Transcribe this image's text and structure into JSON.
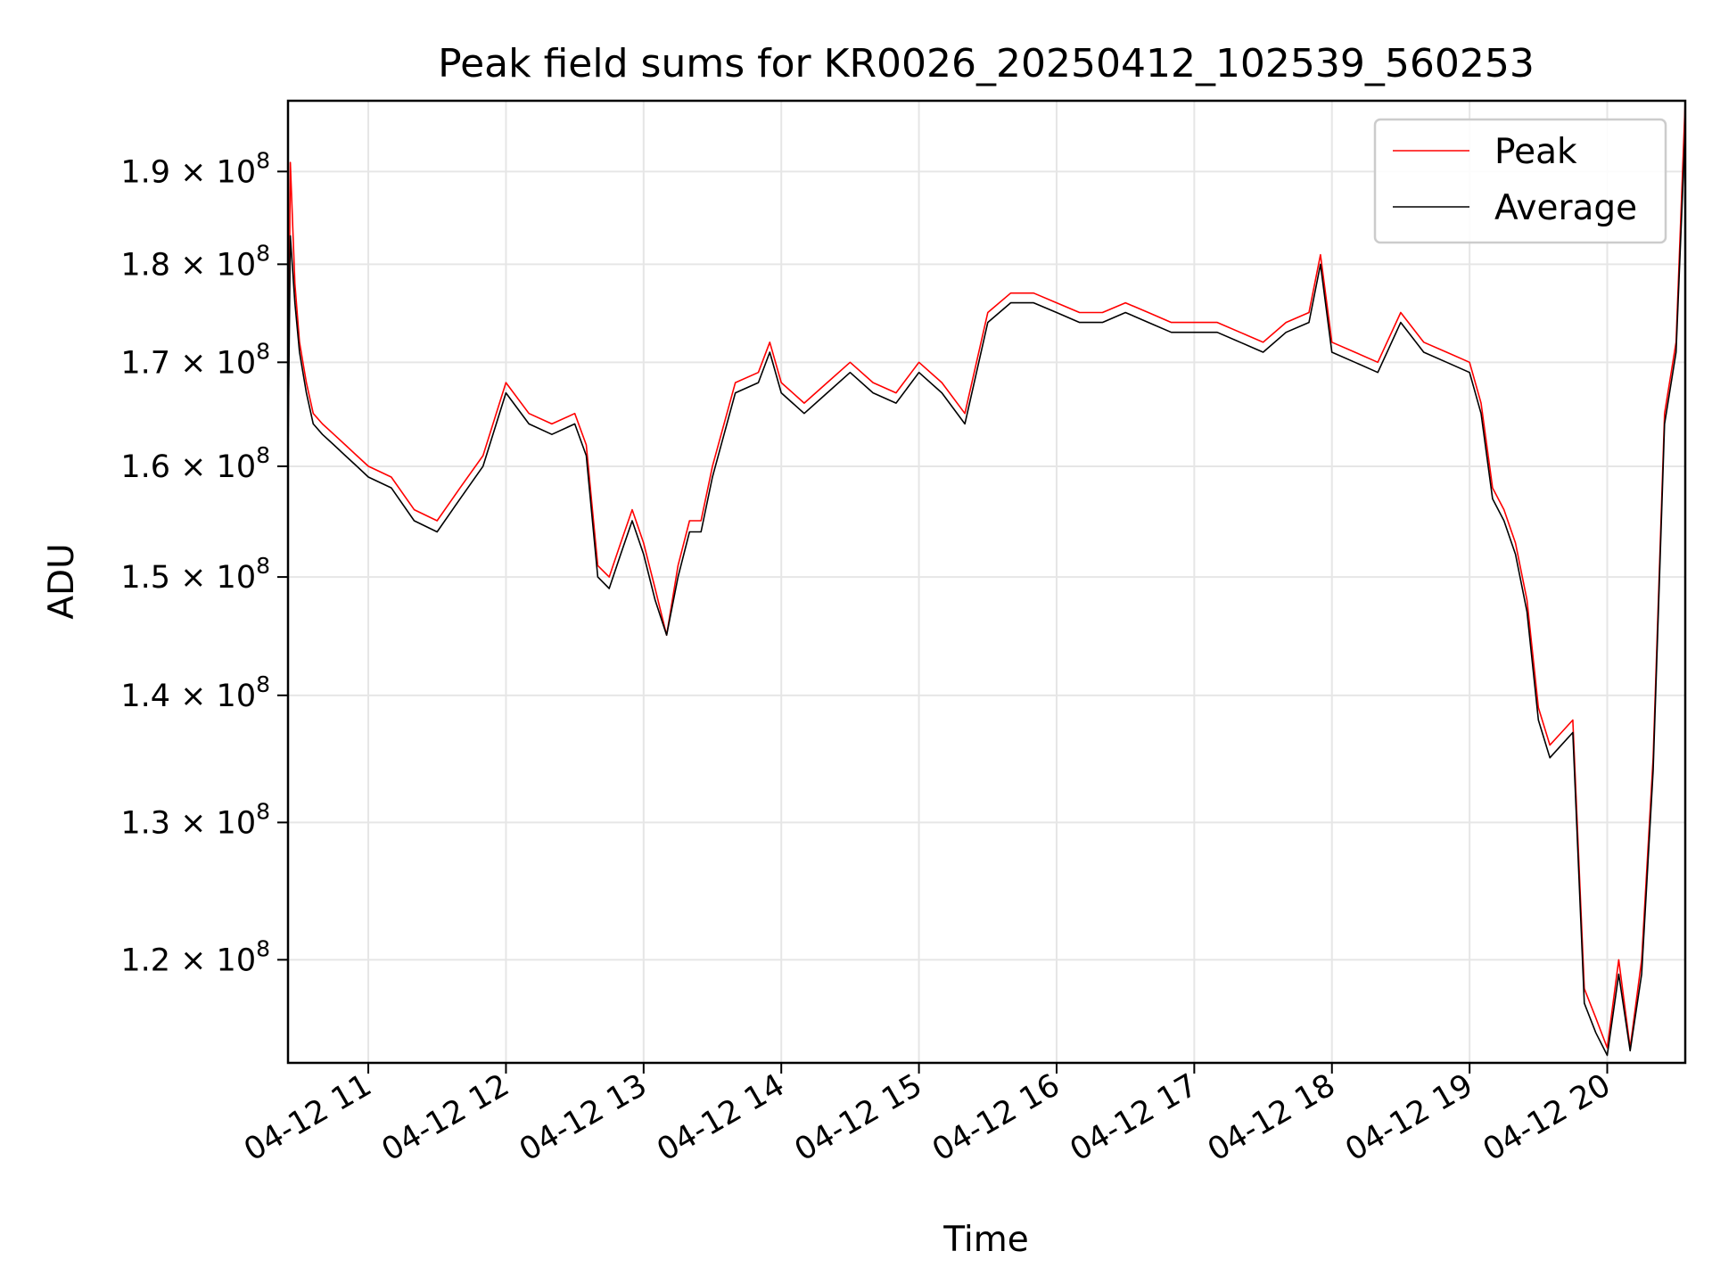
{
  "chart_data": {
    "type": "line",
    "title": "Peak field sums for KR0026_20250412_102539_560253",
    "xlabel": "Time",
    "ylabel": "ADU",
    "yscale": "log",
    "grid": true,
    "legend_position": "upper right",
    "x_tick_labels": [
      "04-12 11",
      "04-12 12",
      "04-12 13",
      "04-12 14",
      "04-12 15",
      "04-12 16",
      "04-12 17",
      "04-12 18",
      "04-12 19",
      "04-12 20"
    ],
    "x_ticks": [
      "2025-04-12 11:00",
      "2025-04-12 12:00",
      "2025-04-12 13:00",
      "2025-04-12 14:00",
      "2025-04-12 15:00",
      "2025-04-12 16:00",
      "2025-04-12 17:00",
      "2025-04-12 18:00",
      "2025-04-12 19:00",
      "2025-04-12 20:00"
    ],
    "xlim": [
      "2025-04-12 10:25",
      "2025-04-12 20:34"
    ],
    "y_ticks": [
      {
        "value": 120000000,
        "mantissa": "1.2",
        "exponent": "8"
      },
      {
        "value": 130000000,
        "mantissa": "1.3",
        "exponent": "8"
      },
      {
        "value": 140000000,
        "mantissa": "1.4",
        "exponent": "8"
      },
      {
        "value": 150000000,
        "mantissa": "1.5",
        "exponent": "8"
      },
      {
        "value": 160000000,
        "mantissa": "1.6",
        "exponent": "8"
      },
      {
        "value": 170000000,
        "mantissa": "1.7",
        "exponent": "8"
      },
      {
        "value": 180000000,
        "mantissa": "1.8",
        "exponent": "8"
      },
      {
        "value": 190000000,
        "mantissa": "1.9",
        "exponent": "8"
      }
    ],
    "ylim": [
      113000000,
      198000000
    ],
    "x": [
      "10:25",
      "10:26",
      "10:28",
      "10:30",
      "10:33",
      "10:36",
      "10:40",
      "10:45",
      "10:50",
      "10:55",
      "11:00",
      "11:10",
      "11:20",
      "11:30",
      "11:40",
      "11:50",
      "12:00",
      "12:10",
      "12:20",
      "12:30",
      "12:35",
      "12:40",
      "12:45",
      "12:50",
      "12:55",
      "13:00",
      "13:05",
      "13:10",
      "13:15",
      "13:20",
      "13:25",
      "13:30",
      "13:40",
      "13:50",
      "13:55",
      "14:00",
      "14:10",
      "14:20",
      "14:30",
      "14:40",
      "14:50",
      "15:00",
      "15:10",
      "15:20",
      "15:30",
      "15:40",
      "15:50",
      "16:00",
      "16:10",
      "16:20",
      "16:30",
      "16:40",
      "16:50",
      "17:00",
      "17:10",
      "17:20",
      "17:30",
      "17:40",
      "17:50",
      "17:55",
      "18:00",
      "18:10",
      "18:20",
      "18:30",
      "18:40",
      "18:50",
      "19:00",
      "19:05",
      "19:10",
      "19:15",
      "19:20",
      "19:25",
      "19:30",
      "19:35",
      "19:40",
      "19:45",
      "19:50",
      "19:55",
      "20:00",
      "20:05",
      "20:10",
      "20:15",
      "20:20",
      "20:25",
      "20:30",
      "20:34"
    ],
    "series": [
      {
        "name": "Peak",
        "color": "#ff0000",
        "values": [
          162000000,
          191000000,
          178000000,
          172000000,
          168000000,
          165000000,
          164000000,
          163000000,
          162000000,
          161000000,
          160000000,
          159000000,
          156000000,
          155000000,
          158000000,
          161000000,
          168000000,
          165000000,
          164000000,
          165000000,
          162000000,
          151000000,
          150000000,
          153000000,
          156000000,
          153000000,
          149000000,
          145000000,
          151000000,
          155000000,
          155000000,
          160000000,
          168000000,
          169000000,
          172000000,
          168000000,
          166000000,
          168000000,
          170000000,
          168000000,
          167000000,
          170000000,
          168000000,
          165000000,
          175000000,
          177000000,
          177000000,
          176000000,
          175000000,
          175000000,
          176000000,
          175000000,
          174000000,
          174000000,
          174000000,
          173000000,
          172000000,
          174000000,
          175000000,
          181000000,
          172000000,
          171000000,
          170000000,
          175000000,
          172000000,
          171000000,
          170000000,
          166000000,
          158000000,
          156000000,
          153000000,
          148000000,
          139000000,
          136000000,
          137000000,
          138000000,
          118000000,
          116000000,
          114000000,
          120000000,
          114000000,
          120000000,
          135000000,
          165000000,
          172000000,
          200000000
        ]
      },
      {
        "name": "Average",
        "color": "#000000",
        "values": [
          161000000,
          183000000,
          176000000,
          171000000,
          167000000,
          164000000,
          163000000,
          162000000,
          161000000,
          160000000,
          159000000,
          158000000,
          155000000,
          154000000,
          157000000,
          160000000,
          167000000,
          164000000,
          163000000,
          164000000,
          161000000,
          150000000,
          149000000,
          152000000,
          155000000,
          152000000,
          148000000,
          145000000,
          150000000,
          154000000,
          154000000,
          159000000,
          167000000,
          168000000,
          171000000,
          167000000,
          165000000,
          167000000,
          169000000,
          167000000,
          166000000,
          169000000,
          167000000,
          164000000,
          174000000,
          176000000,
          176000000,
          175000000,
          174000000,
          174000000,
          175000000,
          174000000,
          173000000,
          173000000,
          173000000,
          172000000,
          171000000,
          173000000,
          174000000,
          180000000,
          171000000,
          170000000,
          169000000,
          174000000,
          171000000,
          170000000,
          169000000,
          165000000,
          157000000,
          155000000,
          152000000,
          147000000,
          138000000,
          135000000,
          136000000,
          137000000,
          117000000,
          115000000,
          113500000,
          119000000,
          113800000,
          119000000,
          134000000,
          164000000,
          171000000,
          195000000
        ]
      }
    ]
  }
}
